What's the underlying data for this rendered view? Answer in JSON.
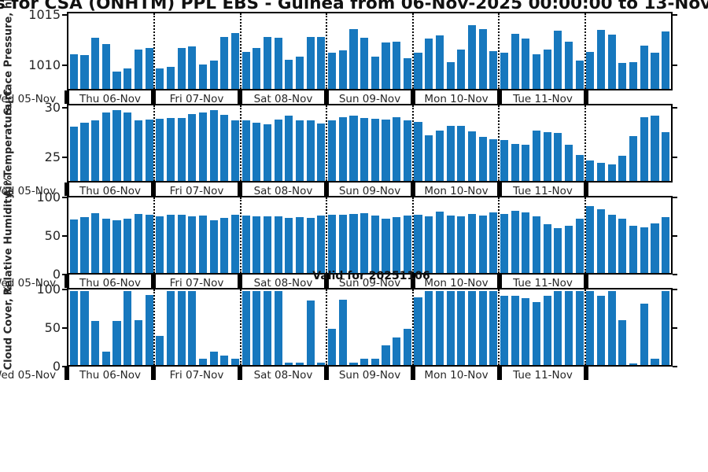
{
  "title": "s for CSA (ONHTM) PPL EBS  - Guinea from 06-Nov-2025 00:00:00 to 13-Nov",
  "annotation": "Valid for 20251106",
  "colors": {
    "bar": "#1778be",
    "line": "#000000",
    "text": "#262626"
  },
  "x_axis": {
    "leading_day_label": "Wed 05-Nov",
    "day_labels": [
      "Thu 06-Nov",
      "Fri 07-Nov",
      "Sat 08-Nov",
      "Sun 09-Nov",
      "Mon 10-Nov",
      "Tue 11-Nov"
    ],
    "trailing_day_labeled": false,
    "bars_per_day": 8,
    "total_days": 7,
    "gridlines": "dotted-at-day-boundaries"
  },
  "chart_data": [
    {
      "type": "bar",
      "name": "surface-pressure",
      "ylabel": "Surface Pressure, hPa",
      "ylim": [
        1007.5,
        1015.3
      ],
      "yticks": [
        {
          "label": "1015",
          "value": 1015
        },
        {
          "label": "1010",
          "value": 1010
        }
      ],
      "values": [
        1011.1,
        1011.0,
        1012.8,
        1012.1,
        1009.3,
        1009.6,
        1011.6,
        1011.7,
        1009.6,
        1009.8,
        1011.7,
        1011.9,
        1010.0,
        1010.4,
        1012.9,
        1013.3,
        1011.3,
        1011.7,
        1012.9,
        1012.8,
        1010.5,
        1010.8,
        1012.9,
        1012.9,
        1011.2,
        1011.5,
        1013.7,
        1012.8,
        1010.8,
        1012.3,
        1012.4,
        1010.7,
        1011.2,
        1012.7,
        1013.0,
        1010.3,
        1011.6,
        1014.1,
        1013.7,
        1011.4,
        1011.2,
        1013.2,
        1012.7,
        1011.1,
        1011.6,
        1013.5,
        1012.4,
        1010.4,
        1011.3,
        1013.6,
        1013.1,
        1010.2,
        1010.3,
        1012.0,
        1011.2,
        1013.4
      ]
    },
    {
      "type": "bar",
      "name": "air-temperature",
      "ylabel": "Air Temperature, C",
      "ylim": [
        22.5,
        30.4
      ],
      "yticks": [
        {
          "label": "30",
          "value": 30
        },
        {
          "label": "25",
          "value": 25
        }
      ],
      "values": [
        28.2,
        28.6,
        28.8,
        29.7,
        29.9,
        29.7,
        28.8,
        28.9,
        29.0,
        29.1,
        29.1,
        29.5,
        29.7,
        29.9,
        29.4,
        28.8,
        28.8,
        28.6,
        28.4,
        28.9,
        29.3,
        28.8,
        28.8,
        28.5,
        28.8,
        29.2,
        29.3,
        29.1,
        29.0,
        28.9,
        29.2,
        28.8,
        28.7,
        27.3,
        27.8,
        28.3,
        28.3,
        27.7,
        27.1,
        26.9,
        26.8,
        26.4,
        26.3,
        27.8,
        27.6,
        27.5,
        26.3,
        25.2,
        24.6,
        24.4,
        24.2,
        25.1,
        27.2,
        29.2,
        29.3,
        27.6
      ]
    },
    {
      "type": "bar",
      "name": "relative-humidity",
      "ylabel": "Relative Humidity, %",
      "ylim": [
        0,
        102
      ],
      "yticks": [
        {
          "label": "100",
          "value": 100
        },
        {
          "label": "50",
          "value": 50
        },
        {
          "label": "0",
          "value": 0
        }
      ],
      "values": [
        72,
        75,
        81,
        73,
        71,
        73,
        80,
        79,
        76,
        79,
        79,
        76,
        78,
        71,
        74,
        79,
        78,
        77,
        76,
        77,
        74,
        75,
        74,
        78,
        79,
        79,
        80,
        81,
        78,
        73,
        75,
        78,
        79,
        76,
        83,
        78,
        77,
        80,
        78,
        82,
        80,
        84,
        82,
        76,
        66,
        61,
        64,
        73,
        90,
        86,
        79,
        73,
        64,
        62,
        67,
        75
      ]
    },
    {
      "type": "bar",
      "name": "cloud-cover",
      "ylabel": "Cloud Cover, %",
      "ylim": [
        0,
        102
      ],
      "yticks": [
        {
          "label": "100",
          "value": 100
        },
        {
          "label": "50",
          "value": 50
        },
        {
          "label": "0",
          "value": 0
        }
      ],
      "values": [
        100,
        100,
        59,
        18,
        60,
        100,
        61,
        95,
        39,
        100,
        100,
        100,
        8,
        18,
        13,
        8,
        100,
        100,
        100,
        100,
        3,
        3,
        87,
        3,
        49,
        88,
        3,
        8,
        8,
        27,
        37,
        49,
        91,
        100,
        100,
        100,
        100,
        100,
        100,
        100,
        93,
        93,
        90,
        85,
        93,
        100,
        100,
        100,
        100,
        93,
        100,
        61,
        2,
        83,
        8,
        100
      ]
    }
  ]
}
